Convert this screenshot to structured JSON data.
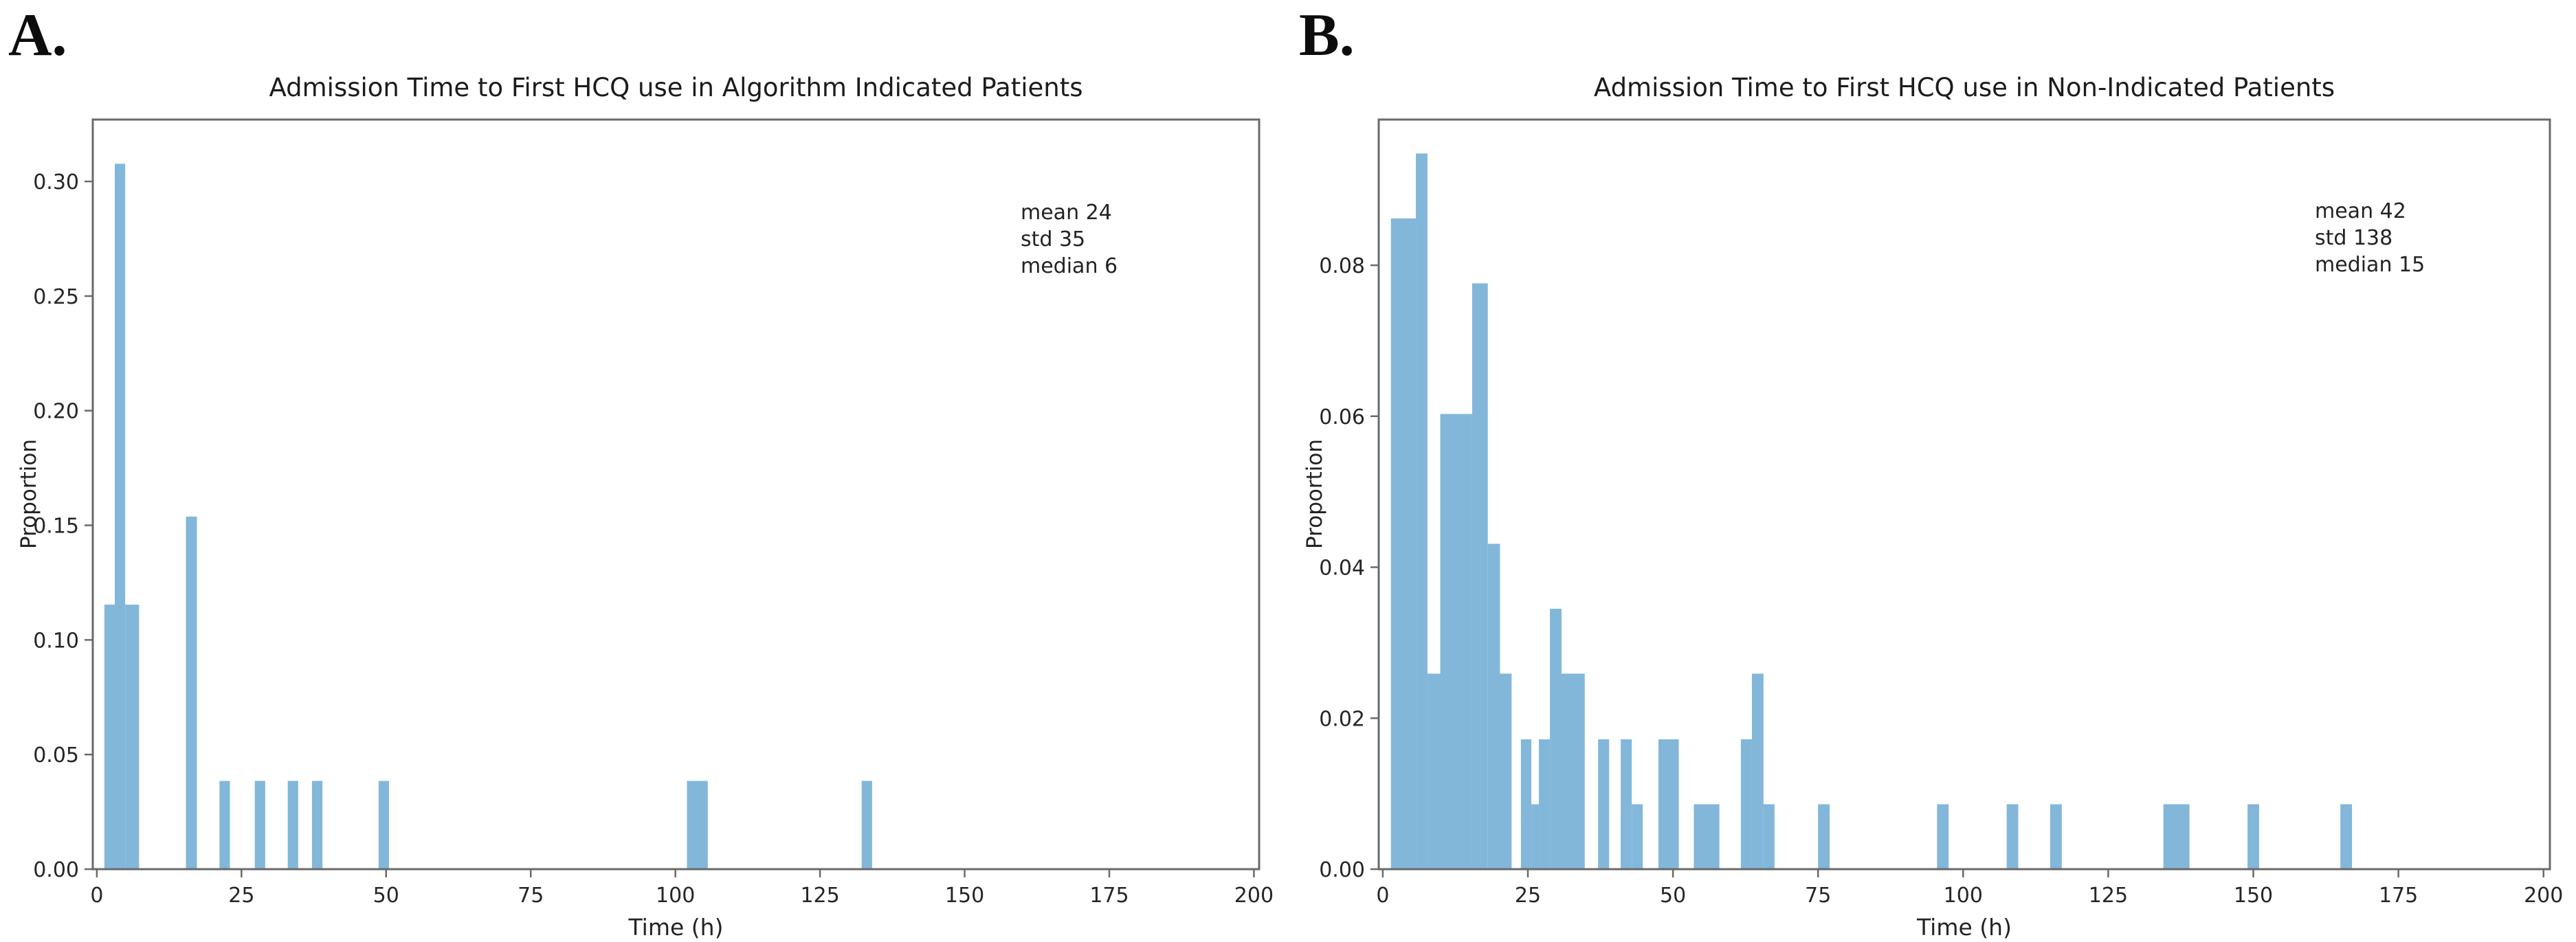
{
  "figure": {
    "letters": [
      "A.",
      "B."
    ],
    "background": "#ffffff"
  },
  "chart_data": [
    {
      "type": "histogram",
      "panel": "A",
      "title": "Admission Time to First HCQ use in Algorithm Indicated Patients",
      "xlabel": "Time (h)",
      "ylabel": "Proportion",
      "bar_color": "#82b7da",
      "axis_color": "#6a6a6a",
      "text_color": "#262626",
      "grid": false,
      "xlim": [
        -0.7,
        200.9
      ],
      "ylim": [
        0,
        0.327
      ],
      "x_ticks": [
        0,
        25,
        50,
        75,
        100,
        125,
        150,
        175,
        200
      ],
      "y_ticks": [
        {
          "v": 0.0,
          "label": "0.00"
        },
        {
          "v": 0.05,
          "label": "0.05"
        },
        {
          "v": 0.1,
          "label": "0.10"
        },
        {
          "v": 0.15,
          "label": "0.15"
        },
        {
          "v": 0.2,
          "label": "0.20"
        },
        {
          "v": 0.25,
          "label": "0.25"
        },
        {
          "v": 0.3,
          "label": "0.30"
        }
      ],
      "bars": [
        {
          "x0": 1.3,
          "x1": 3.1,
          "p": 0.1154
        },
        {
          "x0": 3.1,
          "x1": 4.9,
          "p": 0.3077
        },
        {
          "x0": 4.9,
          "x1": 7.3,
          "p": 0.1154
        },
        {
          "x0": 15.4,
          "x1": 17.3,
          "p": 0.1538
        },
        {
          "x0": 21.2,
          "x1": 23.0,
          "p": 0.0385
        },
        {
          "x0": 27.3,
          "x1": 29.1,
          "p": 0.0385
        },
        {
          "x0": 33.0,
          "x1": 34.8,
          "p": 0.0385
        },
        {
          "x0": 37.2,
          "x1": 39.0,
          "p": 0.0385
        },
        {
          "x0": 48.7,
          "x1": 50.5,
          "p": 0.0385
        },
        {
          "x0": 102.0,
          "x1": 105.6,
          "p": 0.0385
        },
        {
          "x0": 132.2,
          "x1": 134.0,
          "p": 0.0385
        }
      ],
      "annotation": {
        "lines": [
          "mean 24",
          "std 35",
          "median 6"
        ]
      },
      "stats": {
        "mean": 24,
        "std": 35,
        "median": 6
      }
    },
    {
      "type": "histogram",
      "panel": "B",
      "title": "Admission Time to First HCQ use in Non-Indicated Patients",
      "xlabel": "Time (h)",
      "ylabel": "Proportion",
      "bar_color": "#82b7da",
      "axis_color": "#6a6a6a",
      "text_color": "#262626",
      "grid": false,
      "xlim": [
        -0.7,
        201.1
      ],
      "ylim": [
        0,
        0.0993
      ],
      "x_ticks": [
        0,
        25,
        50,
        75,
        100,
        125,
        150,
        175,
        200
      ],
      "y_ticks": [
        {
          "v": 0.0,
          "label": "0.00"
        },
        {
          "v": 0.02,
          "label": "0.02"
        },
        {
          "v": 0.04,
          "label": "0.04"
        },
        {
          "v": 0.06,
          "label": "0.06"
        },
        {
          "v": 0.08,
          "label": "0.08"
        }
      ],
      "bars": [
        {
          "x0": 1.4,
          "x1": 5.7,
          "p": 0.0862
        },
        {
          "x0": 5.7,
          "x1": 7.7,
          "p": 0.0948
        },
        {
          "x0": 7.7,
          "x1": 9.9,
          "p": 0.0259
        },
        {
          "x0": 9.9,
          "x1": 15.4,
          "p": 0.0603
        },
        {
          "x0": 15.4,
          "x1": 18.1,
          "p": 0.0776
        },
        {
          "x0": 18.1,
          "x1": 20.2,
          "p": 0.0431
        },
        {
          "x0": 20.2,
          "x1": 22.2,
          "p": 0.0259
        },
        {
          "x0": 23.8,
          "x1": 25.6,
          "p": 0.0172
        },
        {
          "x0": 25.6,
          "x1": 26.9,
          "p": 0.0086
        },
        {
          "x0": 26.9,
          "x1": 28.8,
          "p": 0.0172
        },
        {
          "x0": 28.8,
          "x1": 30.8,
          "p": 0.0345
        },
        {
          "x0": 30.8,
          "x1": 34.8,
          "p": 0.0259
        },
        {
          "x0": 37.1,
          "x1": 39.0,
          "p": 0.0172
        },
        {
          "x0": 41.0,
          "x1": 42.9,
          "p": 0.0172
        },
        {
          "x0": 42.9,
          "x1": 44.8,
          "p": 0.0086
        },
        {
          "x0": 47.5,
          "x1": 51.0,
          "p": 0.0172
        },
        {
          "x0": 53.6,
          "x1": 58.0,
          "p": 0.0086
        },
        {
          "x0": 61.7,
          "x1": 63.6,
          "p": 0.0172
        },
        {
          "x0": 63.6,
          "x1": 65.6,
          "p": 0.0259
        },
        {
          "x0": 65.6,
          "x1": 67.5,
          "p": 0.0086
        },
        {
          "x0": 75.0,
          "x1": 77.0,
          "p": 0.0086
        },
        {
          "x0": 95.5,
          "x1": 97.5,
          "p": 0.0086
        },
        {
          "x0": 107.5,
          "x1": 109.5,
          "p": 0.0086
        },
        {
          "x0": 115.0,
          "x1": 117.0,
          "p": 0.0086
        },
        {
          "x0": 134.5,
          "x1": 139.0,
          "p": 0.0086
        },
        {
          "x0": 149.0,
          "x1": 151.0,
          "p": 0.0086
        },
        {
          "x0": 165.0,
          "x1": 167.0,
          "p": 0.0086
        }
      ],
      "annotation": {
        "lines": [
          "mean 42",
          "std 138",
          "median 15"
        ]
      },
      "stats": {
        "mean": 42,
        "std": 138,
        "median": 15
      }
    }
  ]
}
